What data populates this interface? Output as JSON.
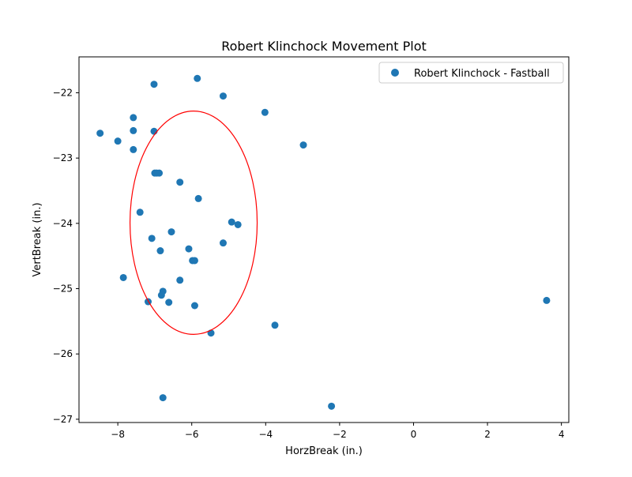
{
  "chart_data": {
    "type": "scatter",
    "title": "Robert Klinchock Movement Plot",
    "xlabel": "HorzBreak (in.)",
    "ylabel": "VertBreak (in.)",
    "xlim": [
      -9.05,
      4.2
    ],
    "ylim": [
      -27.05,
      -21.45
    ],
    "x_ticks": [
      -8,
      -6,
      -4,
      -2,
      0,
      2,
      4
    ],
    "x_tick_labels": [
      "−8",
      "−6",
      "−4",
      "−2",
      "0",
      "2",
      "4"
    ],
    "y_ticks": [
      -22,
      -23,
      -24,
      -25,
      -26,
      -27
    ],
    "y_tick_labels": [
      "−22",
      "−23",
      "−24",
      "−25",
      "−26",
      "−27"
    ],
    "grid": false,
    "legend_position": "top-right",
    "series": [
      {
        "name": "Robert Klinchock - Fastball",
        "color": "#1f77b4",
        "x": [
          -8.48,
          -8.0,
          -7.58,
          -7.58,
          -7.58,
          -7.4,
          -7.85,
          -7.02,
          -7.02,
          -7.0,
          -6.95,
          -6.88,
          -6.32,
          -5.85,
          -5.82,
          -5.15,
          -5.15,
          -4.92,
          -4.75,
          -4.02,
          -2.98,
          -6.55,
          -7.08,
          -6.85,
          -6.08,
          -5.98,
          -5.92,
          -6.32,
          -6.78,
          -6.82,
          -7.18,
          -6.62,
          -5.92,
          -5.48,
          -3.75,
          -6.78,
          -2.22,
          3.6
        ],
        "y": [
          -22.62,
          -22.74,
          -22.38,
          -22.58,
          -22.87,
          -23.83,
          -24.83,
          -21.87,
          -22.59,
          -23.23,
          -23.23,
          -23.23,
          -23.37,
          -21.78,
          -23.62,
          -22.05,
          -24.3,
          -23.98,
          -24.02,
          -22.3,
          -22.8,
          -24.13,
          -24.23,
          -24.42,
          -24.39,
          -24.57,
          -24.57,
          -24.87,
          -25.04,
          -25.1,
          -25.2,
          -25.21,
          -25.26,
          -25.68,
          -25.56,
          -26.67,
          -26.8,
          -25.18
        ]
      }
    ],
    "ellipse": {
      "center": [
        -5.95,
        -23.99
      ],
      "x_radius": 1.72,
      "y_radius": 1.71,
      "color": "#ff0000"
    }
  }
}
